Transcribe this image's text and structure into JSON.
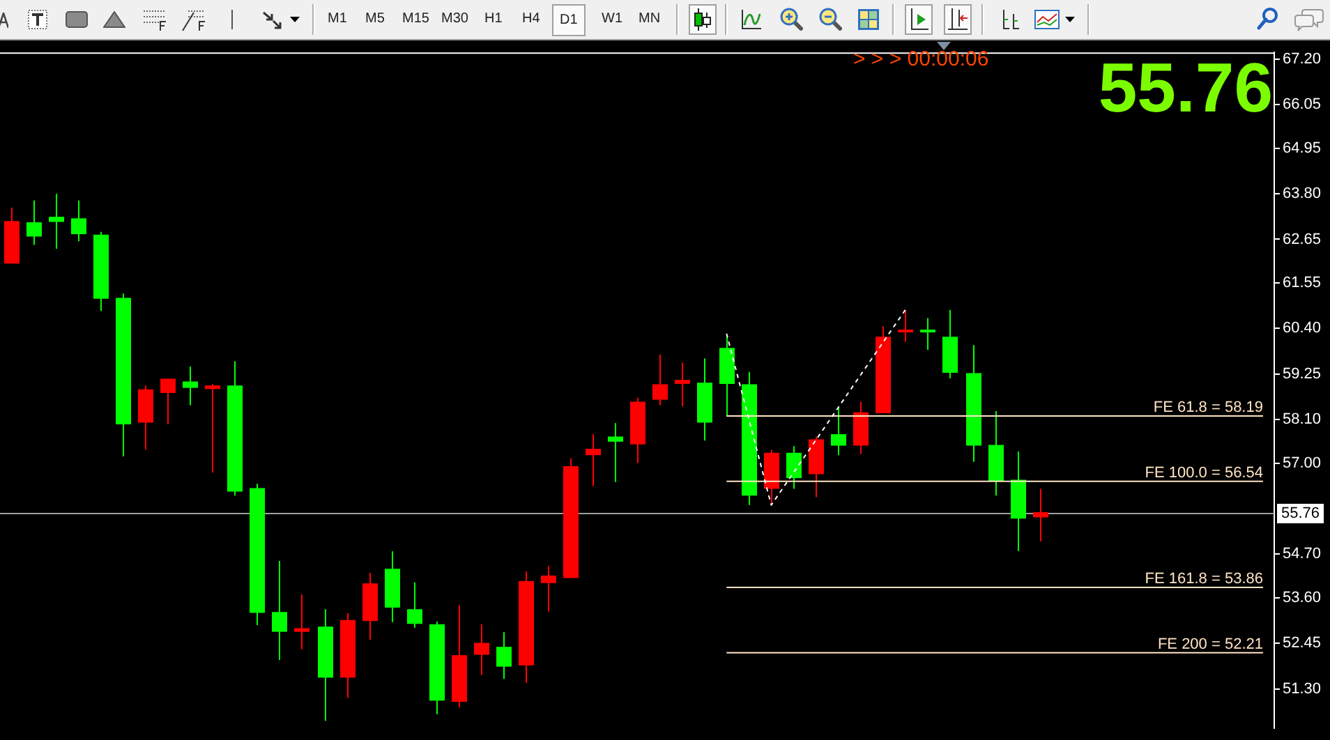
{
  "chart_data": {
    "type": "candlestick",
    "categories": [
      null,
      null,
      null,
      null,
      null,
      null,
      null,
      null,
      null,
      null,
      null,
      null,
      null,
      null,
      null,
      null,
      null,
      null,
      null,
      null,
      null,
      null,
      null,
      null,
      null,
      null,
      null,
      null,
      null,
      null,
      null,
      null,
      null,
      null,
      null,
      null,
      null,
      null,
      null,
      null,
      null,
      null,
      null,
      null,
      null,
      null,
      null,
      null,
      null,
      null,
      null,
      null,
      null,
      null,
      null,
      null,
      null
    ],
    "ohlc": [
      [
        62.04,
        63.45,
        62.04,
        63.11
      ],
      [
        63.08,
        63.63,
        62.51,
        62.72
      ],
      [
        63.22,
        63.8,
        62.41,
        63.09
      ],
      [
        63.18,
        63.63,
        62.6,
        62.78
      ],
      [
        62.77,
        62.84,
        60.84,
        61.15
      ],
      [
        61.17,
        61.28,
        57.17,
        57.98
      ],
      [
        58.02,
        58.96,
        57.34,
        58.86
      ],
      [
        58.77,
        59.13,
        57.98,
        59.13
      ],
      [
        59.06,
        59.44,
        58.46,
        58.9
      ],
      [
        58.87,
        58.99,
        56.76,
        58.96
      ],
      [
        58.96,
        59.57,
        56.18,
        56.28
      ],
      [
        56.37,
        56.48,
        52.91,
        53.22
      ],
      [
        53.24,
        54.53,
        52.03,
        52.74
      ],
      [
        52.74,
        53.68,
        52.3,
        52.83
      ],
      [
        52.87,
        53.31,
        50.49,
        51.58
      ],
      [
        51.58,
        53.21,
        51.07,
        53.04
      ],
      [
        53.01,
        54.23,
        52.54,
        53.96
      ],
      [
        54.33,
        54.77,
        52.98,
        53.35
      ],
      [
        53.31,
        53.99,
        52.84,
        52.94
      ],
      [
        52.93,
        53.0,
        50.66,
        51.0
      ],
      [
        50.97,
        53.41,
        50.83,
        52.15
      ],
      [
        52.16,
        52.93,
        51.65,
        52.46
      ],
      [
        52.36,
        52.73,
        51.55,
        51.86
      ],
      [
        51.89,
        54.26,
        51.45,
        54.02
      ],
      [
        53.97,
        54.4,
        53.25,
        54.16
      ],
      [
        54.1,
        57.12,
        54.1,
        56.92
      ],
      [
        57.2,
        57.73,
        56.42,
        57.36
      ],
      [
        57.67,
        58.01,
        56.52,
        57.54
      ],
      [
        57.47,
        58.65,
        57.0,
        58.55
      ],
      [
        58.6,
        59.74,
        58.46,
        58.99
      ],
      [
        59.0,
        59.54,
        58.43,
        59.1
      ],
      [
        59.03,
        59.64,
        57.57,
        58.02
      ],
      [
        59.91,
        60.19,
        58.18,
        59.0
      ],
      [
        58.99,
        59.3,
        55.94,
        56.18
      ],
      [
        56.35,
        57.33,
        55.94,
        57.26
      ],
      [
        57.26,
        57.43,
        56.35,
        56.62
      ],
      [
        56.72,
        57.67,
        56.14,
        57.6
      ],
      [
        57.73,
        58.42,
        57.2,
        57.44
      ],
      [
        57.44,
        58.55,
        57.23,
        58.28
      ],
      [
        58.26,
        60.46,
        58.26,
        60.19
      ],
      [
        60.3,
        60.87,
        60.06,
        60.37
      ],
      [
        60.37,
        60.66,
        59.86,
        60.3
      ],
      [
        60.19,
        60.87,
        59.14,
        59.28
      ],
      [
        59.27,
        59.98,
        57.03,
        57.44
      ],
      [
        57.46,
        58.31,
        56.18,
        56.55
      ],
      [
        56.58,
        57.29,
        54.78,
        55.6
      ],
      [
        55.63,
        56.35,
        55.02,
        55.76
      ],
      null,
      null,
      null,
      null,
      null,
      null,
      null,
      null,
      null,
      null
    ],
    "colors": [
      "#ff0000",
      "#00ff00",
      "#00ff00",
      "#00ff00",
      "#00ff00",
      "#00ff00",
      "#ff0000",
      "#ff0000",
      "#00ff00",
      "#ff0000",
      "#00ff00",
      "#00ff00",
      "#00ff00",
      "#ff0000",
      "#00ff00",
      "#ff0000",
      "#ff0000",
      "#00ff00",
      "#00ff00",
      "#00ff00",
      "#ff0000",
      "#ff0000",
      "#00ff00",
      "#ff0000",
      "#ff0000",
      "#ff0000",
      "#ff0000",
      "#00ff00",
      "#ff0000",
      "#ff0000",
      "#ff0000",
      "#00ff00",
      "#00ff00",
      "#00ff00",
      "#ff0000",
      "#00ff00",
      "#ff0000",
      "#00ff00",
      "#ff0000",
      "#ff0000",
      "#ff0000",
      "#00ff00",
      "#00ff00",
      "#00ff00",
      "#00ff00",
      "#00ff00",
      "#ff0000",
      null,
      null,
      null,
      null,
      null,
      null,
      null,
      null,
      null,
      null
    ],
    "series": [
      {
        "type": "line",
        "color": "#ffffff",
        "line_style": "dashed",
        "values": [
          null,
          null,
          null,
          null,
          null,
          null,
          null,
          null,
          null,
          null,
          null,
          null,
          null,
          null,
          null,
          null,
          null,
          null,
          null,
          null,
          null,
          null,
          null,
          null,
          null,
          null,
          null,
          null,
          null,
          null,
          null,
          null,
          60.27,
          null,
          55.94,
          null,
          null,
          null,
          null,
          null,
          60.87,
          null,
          null,
          null,
          null,
          null,
          null,
          null,
          null,
          null,
          null,
          null,
          null,
          null,
          null,
          null,
          null
        ]
      },
      {
        "type": "line",
        "name": "FE 61.8 = 58.19",
        "color": "#ffe4c4",
        "values": [
          null,
          null,
          null,
          null,
          null,
          null,
          null,
          null,
          null,
          null,
          null,
          null,
          null,
          null,
          null,
          null,
          null,
          null,
          null,
          null,
          null,
          null,
          null,
          null,
          null,
          null,
          null,
          null,
          null,
          null,
          null,
          null,
          58.19,
          58.19,
          58.19,
          58.19,
          58.19,
          58.19,
          58.19,
          58.19,
          58.19,
          58.19,
          58.19,
          58.19,
          58.19,
          58.19,
          58.19,
          58.19,
          58.19,
          58.19,
          58.19,
          58.19,
          58.19,
          58.19,
          58.19,
          58.19,
          58.19
        ]
      },
      {
        "type": "line",
        "name": "FE 100.0 = 56.54",
        "color": "#ffe4c4",
        "values": [
          null,
          null,
          null,
          null,
          null,
          null,
          null,
          null,
          null,
          null,
          null,
          null,
          null,
          null,
          null,
          null,
          null,
          null,
          null,
          null,
          null,
          null,
          null,
          null,
          null,
          null,
          null,
          null,
          null,
          null,
          null,
          null,
          56.54,
          56.54,
          56.54,
          56.54,
          56.54,
          56.54,
          56.54,
          56.54,
          56.54,
          56.54,
          56.54,
          56.54,
          56.54,
          56.54,
          56.54,
          56.54,
          56.54,
          56.54,
          56.54,
          56.54,
          56.54,
          56.54,
          56.54,
          56.54,
          56.54
        ]
      },
      {
        "type": "line",
        "name": "FE 161.8 = 53.86",
        "color": "#ffe4c4",
        "values": [
          null,
          null,
          null,
          null,
          null,
          null,
          null,
          null,
          null,
          null,
          null,
          null,
          null,
          null,
          null,
          null,
          null,
          null,
          null,
          null,
          null,
          null,
          null,
          null,
          null,
          null,
          null,
          null,
          null,
          null,
          null,
          null,
          53.86,
          53.86,
          53.86,
          53.86,
          53.86,
          53.86,
          53.86,
          53.86,
          53.86,
          53.86,
          53.86,
          53.86,
          53.86,
          53.86,
          53.86,
          53.86,
          53.86,
          53.86,
          53.86,
          53.86,
          53.86,
          53.86,
          53.86,
          53.86,
          53.86
        ]
      },
      {
        "type": "line",
        "name": "FE 200 = 52.21",
        "color": "#ffe4c4",
        "values": [
          null,
          null,
          null,
          null,
          null,
          null,
          null,
          null,
          null,
          null,
          null,
          null,
          null,
          null,
          null,
          null,
          null,
          null,
          null,
          null,
          null,
          null,
          null,
          null,
          null,
          null,
          null,
          null,
          null,
          null,
          null,
          null,
          52.21,
          52.21,
          52.21,
          52.21,
          52.21,
          52.21,
          52.21,
          52.21,
          52.21,
          52.21,
          52.21,
          52.21,
          52.21,
          52.21,
          52.21,
          52.21,
          52.21,
          52.21,
          52.21,
          52.21,
          52.21,
          52.21,
          52.21,
          52.21,
          52.21
        ]
      }
    ],
    "ylim": [
      50.31,
      67.37
    ],
    "yticks": [
      {
        "value": 67.2,
        "label": "67.20"
      },
      {
        "value": 66.05,
        "label": "66.05"
      },
      {
        "value": 64.95,
        "label": "64.95"
      },
      {
        "value": 63.8,
        "label": "63.80"
      },
      {
        "value": 62.65,
        "label": "62.65"
      },
      {
        "value": 61.55,
        "label": "61.55"
      },
      {
        "value": 60.4,
        "label": "60.40"
      },
      {
        "value": 59.25,
        "label": "59.25"
      },
      {
        "value": 58.1,
        "label": "58.10"
      },
      {
        "value": 57,
        "label": "57.00"
      },
      {
        "value": 54.7,
        "label": "54.70"
      },
      {
        "value": 53.6,
        "label": "53.60"
      },
      {
        "value": 52.45,
        "label": "52.45"
      },
      {
        "value": 51.3,
        "label": "51.30"
      }
    ],
    "tick_labels": "y",
    "ref_lines": [
      {
        "axis": "y",
        "value": 55.76,
        "label": "55.76",
        "color": "#a0a0a0"
      }
    ],
    "annotations": [
      "> > > 00:00:06",
      "55.76",
      "M1",
      "M5",
      "M15",
      "M30",
      "H1",
      "H4",
      "D1",
      "W1",
      "MN"
    ]
  }
}
